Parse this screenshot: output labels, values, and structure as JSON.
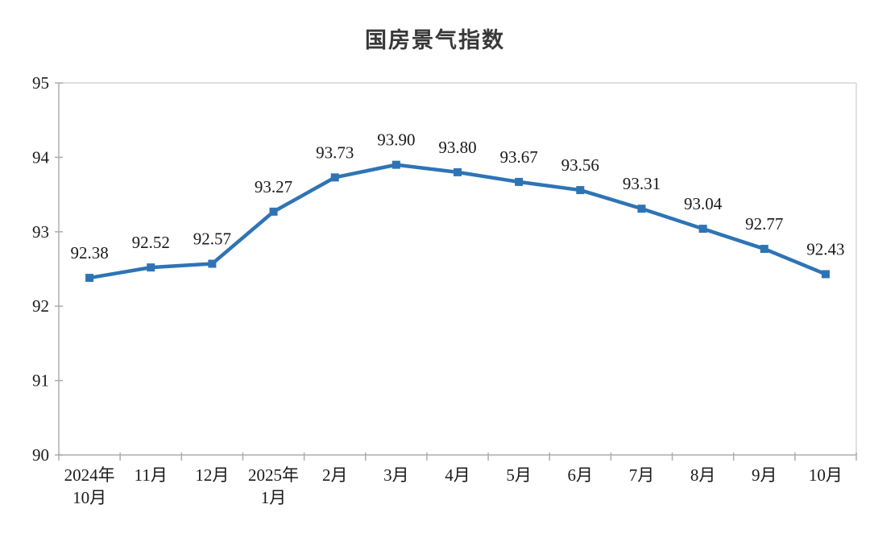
{
  "chart_data": {
    "type": "line",
    "title": "国房景气指数",
    "categories": [
      "2024年\n10月",
      "11月",
      "12月",
      "2025年\n1月",
      "2月",
      "3月",
      "4月",
      "5月",
      "6月",
      "7月",
      "8月",
      "9月",
      "10月"
    ],
    "values": [
      92.38,
      92.52,
      92.57,
      93.27,
      93.73,
      93.9,
      93.8,
      93.67,
      93.56,
      93.31,
      93.04,
      92.77,
      92.43
    ],
    "data_labels": [
      "92.38",
      "92.52",
      "92.57",
      "93.27",
      "93.73",
      "93.90",
      "93.80",
      "93.67",
      "93.56",
      "93.31",
      "93.04",
      "92.77",
      "92.43"
    ],
    "ylim": [
      90,
      95
    ],
    "yticks": [
      90,
      91,
      92,
      93,
      94,
      95
    ],
    "grid": "off",
    "legend": "none",
    "xlabel": "",
    "ylabel": "",
    "colors": {
      "line": "#2E74B5",
      "marker": "#2E74B5",
      "axis_line": "#ADADAD",
      "frame_line": "#D6D6D6",
      "tick_mark": "#ADADAD",
      "data_label_text": "#1A1A1A",
      "axis_tick_text": "#1A1A1A",
      "title_text": "#383838"
    }
  }
}
